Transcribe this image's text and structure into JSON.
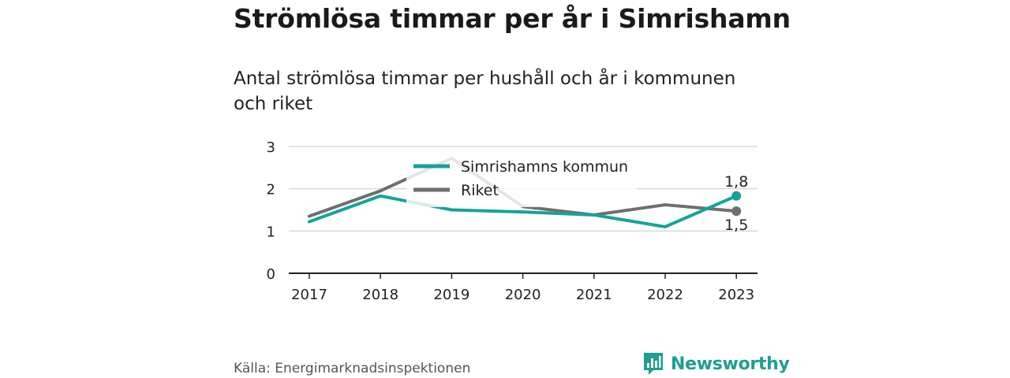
{
  "title": "Strömlösa timmar per år i Simrishamn",
  "subtitle": "Antal strömlösa timmar per hushåll och år i kommunen och riket",
  "source": "Källa: Energimarknadsinspektionen",
  "brand": {
    "name": "Newsworthy",
    "logo_icon": "bar-chart-speech-bubble-icon",
    "color": "#1e9e90"
  },
  "chart_data": {
    "type": "line",
    "x": [
      "2017",
      "2018",
      "2019",
      "2020",
      "2021",
      "2022",
      "2023"
    ],
    "series": [
      {
        "name": "Simrishamns kommun",
        "color": "#15a398",
        "values": [
          1.22,
          1.83,
          1.5,
          1.45,
          1.38,
          1.1,
          1.83
        ],
        "end_label": "1,8"
      },
      {
        "name": "Riket",
        "color": "#6e6e6e",
        "values": [
          1.35,
          1.95,
          2.72,
          1.58,
          1.38,
          1.62,
          1.47
        ],
        "end_label": "1,5"
      }
    ],
    "yticks": [
      "0",
      "1",
      "2",
      "3"
    ],
    "ylim": [
      0,
      3
    ],
    "grid": true,
    "legend_position": "top-center"
  }
}
